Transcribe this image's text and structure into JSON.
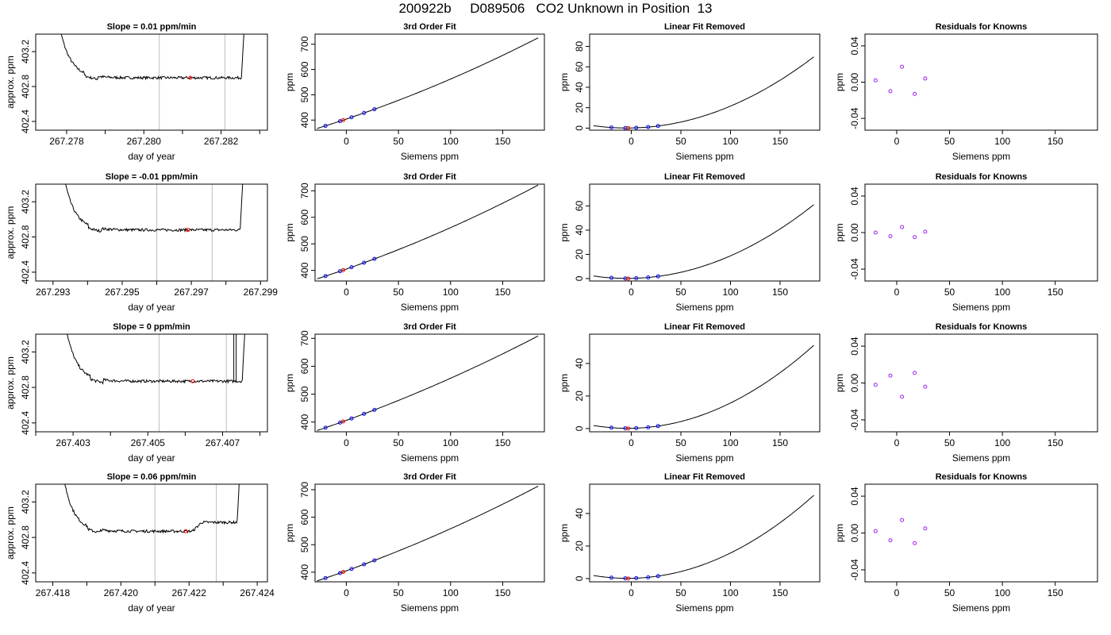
{
  "page_title": "200922b     D089506   CO2 Unknown in Position  13",
  "colors": {
    "curve": "#000000",
    "grid_line": "#bebebe",
    "known_points": "#0000ff",
    "unknown_point": "#ff0000",
    "residual_points": "#a020f0"
  },
  "chart_data": [
    {
      "type": "line",
      "panel": "trace",
      "row": 1,
      "title": "Slope =  0.01  ppm/min",
      "xlabel": "day of year",
      "ylabel": "approx. ppm",
      "xlim": [
        267.2772,
        267.2832
      ],
      "ylim": [
        402.3,
        403.4
      ],
      "xticks": [
        267.277,
        267.278,
        267.279,
        267.28,
        267.281,
        267.282,
        267.283
      ],
      "xtick_labels": [
        "",
        "267.278",
        "",
        "267.280",
        "",
        "267.282",
        ""
      ],
      "yticks": [
        402.4,
        402.8,
        403.2
      ],
      "ytick_labels": [
        "402.4",
        "402.8",
        "403.2"
      ],
      "vlines": [
        267.2804,
        267.2821
      ],
      "unknown_point": {
        "x": 267.2812,
        "y": 402.9
      },
      "trace": {
        "x_start": 267.2777,
        "x_end": 267.2827,
        "level": 402.9,
        "offset": 0,
        "step_at": null,
        "spike_at": null
      }
    },
    {
      "type": "line",
      "panel": "fit",
      "row": 1,
      "title": "3rd Order Fit",
      "xlabel": "Siemens ppm",
      "ylabel": "ppm",
      "xlim": [
        -30,
        190
      ],
      "ylim": [
        360,
        740
      ],
      "xticks": [
        0,
        50,
        100,
        150
      ],
      "yticks": [
        400,
        500,
        600,
        700
      ],
      "fit": {
        "a": 404,
        "b": 1.386,
        "c": 0.00196
      },
      "known_x": [
        -20,
        -6,
        5,
        17,
        27
      ],
      "unknown_x": -3
    },
    {
      "type": "line",
      "panel": "linear_removed",
      "row": 1,
      "title": "Linear Fit Removed",
      "xlabel": "Siemens ppm",
      "ylabel": "ppm",
      "xlim": [
        -42,
        190
      ],
      "ylim": [
        -2,
        92
      ],
      "xticks": [
        0,
        50,
        100,
        150
      ],
      "yticks": [
        0,
        20,
        40,
        60,
        80
      ],
      "quad": {
        "c": 0.00196,
        "shift": -7,
        "offset": 0.4
      },
      "known_x": [
        -20,
        -6,
        5,
        17,
        27
      ],
      "unknown_x": -3
    },
    {
      "type": "scatter",
      "panel": "residuals",
      "row": 1,
      "title": "Residuals for Knowns",
      "xlabel": "Siemens ppm",
      "ylabel": "ppm",
      "xlim": [
        -30,
        190
      ],
      "ylim": [
        -0.053,
        0.053
      ],
      "xticks": [
        0,
        50,
        100,
        150
      ],
      "yticks": [
        -0.04,
        0,
        0.04
      ],
      "ytick_labels": [
        "-0.04",
        "0.00",
        "0.04"
      ],
      "points": [
        {
          "x": -20,
          "y": 0.002
        },
        {
          "x": -6,
          "y": -0.01
        },
        {
          "x": 5,
          "y": 0.017
        },
        {
          "x": 17,
          "y": -0.013
        },
        {
          "x": 27,
          "y": 0.004
        }
      ]
    },
    {
      "type": "line",
      "panel": "trace",
      "row": 2,
      "title": "Slope =  -0.01  ppm/min",
      "xlabel": "day of year",
      "ylabel": "approx. ppm",
      "xlim": [
        267.2925,
        267.2992
      ],
      "ylim": [
        402.3,
        403.4
      ],
      "xticks": [
        267.293,
        267.294,
        267.295,
        267.296,
        267.297,
        267.298,
        267.299
      ],
      "xtick_labels": [
        "267.293",
        "",
        "267.295",
        "",
        "267.297",
        "",
        "267.299"
      ],
      "yticks": [
        402.4,
        402.8,
        403.2
      ],
      "ytick_labels": [
        "402.4",
        "402.8",
        "403.2"
      ],
      "vlines": [
        267.296,
        267.2976
      ],
      "unknown_point": {
        "x": 267.2969,
        "y": 402.88
      },
      "trace": {
        "x_start": 267.2932,
        "x_end": 267.2986,
        "level": 402.88,
        "offset": 0,
        "step_at": null,
        "spike_at": null
      }
    },
    {
      "type": "line",
      "panel": "fit",
      "row": 2,
      "title": "3rd Order Fit",
      "xlabel": "Siemens ppm",
      "ylabel": "ppm",
      "xlim": [
        -30,
        190
      ],
      "ylim": [
        360,
        725
      ],
      "xticks": [
        0,
        50,
        100,
        150
      ],
      "yticks": [
        400,
        500,
        600,
        700
      ],
      "fit": {
        "a": 405,
        "b": 1.37,
        "c": 0.0019
      },
      "known_x": [
        -20,
        -6,
        5,
        17,
        27
      ],
      "unknown_x": -3
    },
    {
      "type": "line",
      "panel": "linear_removed",
      "row": 2,
      "title": "Linear Fit Removed",
      "xlabel": "Siemens ppm",
      "ylabel": "ppm",
      "xlim": [
        -42,
        190
      ],
      "ylim": [
        -2,
        78
      ],
      "xticks": [
        0,
        50,
        100,
        150
      ],
      "yticks": [
        0,
        20,
        40,
        60
      ],
      "quad": {
        "c": 0.00172,
        "shift": -7,
        "offset": 0.4
      },
      "known_x": [
        -20,
        -6,
        5,
        17,
        27
      ],
      "unknown_x": -3
    },
    {
      "type": "scatter",
      "panel": "residuals",
      "row": 2,
      "title": "Residuals for Knowns",
      "xlabel": "Siemens ppm",
      "ylabel": "ppm",
      "xlim": [
        -30,
        190
      ],
      "ylim": [
        -0.053,
        0.053
      ],
      "xticks": [
        0,
        50,
        100,
        150
      ],
      "yticks": [
        -0.04,
        0,
        0.04
      ],
      "ytick_labels": [
        "-0.04",
        "0.00",
        "0.04"
      ],
      "points": [
        {
          "x": -20,
          "y": 0.0
        },
        {
          "x": -6,
          "y": -0.004
        },
        {
          "x": 5,
          "y": 0.006
        },
        {
          "x": 17,
          "y": -0.005
        },
        {
          "x": 27,
          "y": 0.001
        }
      ]
    },
    {
      "type": "line",
      "panel": "trace",
      "row": 3,
      "title": "Slope =  0  ppm/min",
      "xlabel": "day of year",
      "ylabel": "approx. ppm",
      "xlim": [
        267.402,
        267.4082
      ],
      "ylim": [
        402.3,
        403.4
      ],
      "xticks": [
        267.402,
        267.403,
        267.404,
        267.405,
        267.406,
        267.407,
        267.408
      ],
      "xtick_labels": [
        "",
        "267.403",
        "",
        "267.405",
        "",
        "267.407",
        ""
      ],
      "yticks": [
        402.4,
        402.8,
        403.2
      ],
      "ytick_labels": [
        "402.4",
        "402.8",
        "403.2"
      ],
      "vlines": [
        267.4053,
        267.4071
      ],
      "unknown_point": {
        "x": 267.4062,
        "y": 402.87
      },
      "trace": {
        "x_start": 267.4027,
        "x_end": 267.4077,
        "level": 402.87,
        "offset": 0,
        "step_at": null,
        "spike_at": 267.4073
      }
    },
    {
      "type": "line",
      "panel": "fit",
      "row": 3,
      "title": "3rd Order Fit",
      "xlabel": "Siemens ppm",
      "ylabel": "ppm",
      "xlim": [
        -30,
        190
      ],
      "ylim": [
        365,
        715
      ],
      "xticks": [
        0,
        50,
        100,
        150
      ],
      "yticks": [
        400,
        500,
        600,
        700
      ],
      "fit": {
        "a": 406,
        "b": 1.35,
        "c": 0.0016
      },
      "known_x": [
        -20,
        -6,
        5,
        17,
        27
      ],
      "unknown_x": -3
    },
    {
      "type": "line",
      "panel": "linear_removed",
      "row": 3,
      "title": "Linear Fit Removed",
      "xlabel": "Siemens ppm",
      "ylabel": "ppm",
      "xlim": [
        -42,
        190
      ],
      "ylim": [
        -2,
        58
      ],
      "xticks": [
        0,
        50,
        100,
        150
      ],
      "yticks": [
        0,
        20,
        40
      ],
      "quad": {
        "c": 0.00145,
        "shift": -7,
        "offset": 0.4
      },
      "known_x": [
        -20,
        -6,
        5,
        17,
        27
      ],
      "unknown_x": -3
    },
    {
      "type": "scatter",
      "panel": "residuals",
      "row": 3,
      "title": "Residuals for Knowns",
      "xlabel": "Siemens ppm",
      "ylabel": "ppm",
      "xlim": [
        -30,
        190
      ],
      "ylim": [
        -0.053,
        0.053
      ],
      "xticks": [
        0,
        50,
        100,
        150
      ],
      "yticks": [
        -0.04,
        0,
        0.04
      ],
      "ytick_labels": [
        "-0.04",
        "0.00",
        "0.04"
      ],
      "points": [
        {
          "x": -20,
          "y": -0.002
        },
        {
          "x": -6,
          "y": 0.008
        },
        {
          "x": 5,
          "y": -0.015
        },
        {
          "x": 17,
          "y": 0.011
        },
        {
          "x": 27,
          "y": -0.004
        }
      ]
    },
    {
      "type": "line",
      "panel": "trace",
      "row": 4,
      "title": "Slope =  0.06  ppm/min",
      "xlabel": "day of year",
      "ylabel": "approx. ppm",
      "xlim": [
        267.4175,
        267.4243
      ],
      "ylim": [
        402.3,
        403.4
      ],
      "xticks": [
        267.418,
        267.419,
        267.42,
        267.421,
        267.422,
        267.423,
        267.424
      ],
      "xtick_labels": [
        "267.418",
        "",
        "267.420",
        "",
        "267.422",
        "",
        "267.424"
      ],
      "yticks": [
        402.4,
        402.8,
        403.2
      ],
      "ytick_labels": [
        "402.4",
        "402.8",
        "403.2"
      ],
      "vlines": [
        267.421,
        267.4228
      ],
      "unknown_point": {
        "x": 267.4219,
        "y": 402.87
      },
      "trace": {
        "x_start": 267.4182,
        "x_end": 267.4236,
        "level": 402.87,
        "offset": 0.1,
        "step_at": 267.4221,
        "spike_at": null
      }
    },
    {
      "type": "line",
      "panel": "fit",
      "row": 4,
      "title": "3rd Order Fit",
      "xlabel": "Siemens ppm",
      "ylabel": "ppm",
      "xlim": [
        -30,
        190
      ],
      "ylim": [
        365,
        720
      ],
      "xticks": [
        0,
        50,
        100,
        150
      ],
      "yticks": [
        400,
        500,
        600,
        700
      ],
      "fit": {
        "a": 405,
        "b": 1.36,
        "c": 0.0017
      },
      "known_x": [
        -20,
        -6,
        5,
        17,
        27
      ],
      "unknown_x": -3
    },
    {
      "type": "line",
      "panel": "linear_removed",
      "row": 4,
      "title": "Linear Fit Removed",
      "xlabel": "Siemens ppm",
      "ylabel": "ppm",
      "xlim": [
        -42,
        190
      ],
      "ylim": [
        -2,
        58
      ],
      "xticks": [
        0,
        50,
        100,
        150
      ],
      "yticks": [
        0,
        20,
        40
      ],
      "quad": {
        "c": 0.00145,
        "shift": -7,
        "offset": 0.4
      },
      "known_x": [
        -20,
        -6,
        5,
        17,
        27
      ],
      "unknown_x": -3
    },
    {
      "type": "scatter",
      "panel": "residuals",
      "row": 4,
      "title": "Residuals for Knowns",
      "xlabel": "Siemens ppm",
      "ylabel": "ppm",
      "xlim": [
        -30,
        190
      ],
      "ylim": [
        -0.053,
        0.053
      ],
      "xticks": [
        0,
        50,
        100,
        150
      ],
      "yticks": [
        -0.04,
        0,
        0.04
      ],
      "ytick_labels": [
        "-0.04",
        "0.00",
        "0.04"
      ],
      "points": [
        {
          "x": -20,
          "y": 0.002
        },
        {
          "x": -6,
          "y": -0.008
        },
        {
          "x": 5,
          "y": 0.014
        },
        {
          "x": 17,
          "y": -0.011
        },
        {
          "x": 27,
          "y": 0.005
        }
      ]
    }
  ]
}
